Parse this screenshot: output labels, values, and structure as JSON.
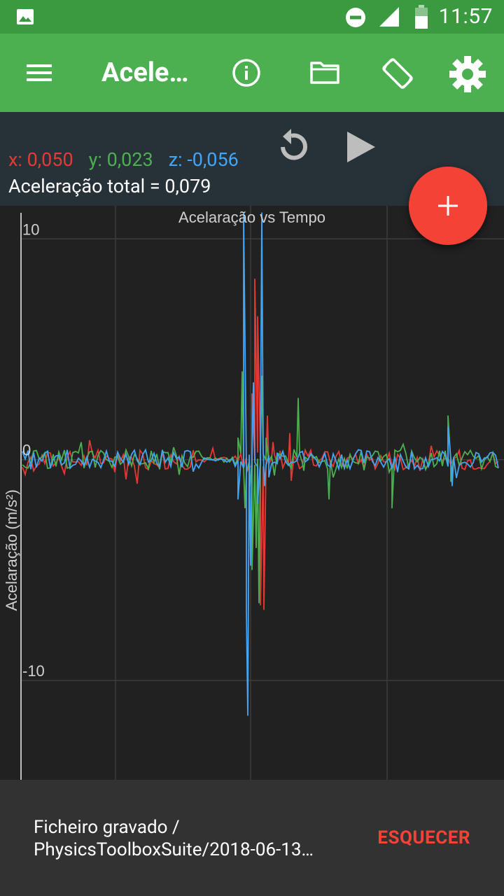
{
  "status_bar": {
    "time": "11:57"
  },
  "app_bar": {
    "title": "Acele…"
  },
  "readout": {
    "x_label": "x: 0,050",
    "y_label": "y: 0,023",
    "z_label": "z: -0,056",
    "total_label": "Aceleração total = 0,079",
    "colors": {
      "x": "#e53935",
      "y": "#4caf50",
      "z": "#42a5f5"
    }
  },
  "chart_data": {
    "type": "line",
    "title": "Acelaração vs Tempo",
    "ylabel": "Acelaração (m/s²)",
    "xlabel": "",
    "ylim": [
      -14.5,
      11.5
    ],
    "y_ticks": [
      10,
      0,
      -10
    ],
    "y_tick_labels": [
      "10",
      "0",
      "-10"
    ],
    "grid": true,
    "series": [
      {
        "color": "#e53935"
      },
      {
        "color": "#4caf50"
      },
      {
        "color": "#42a5f5"
      }
    ]
  },
  "snackbar": {
    "line1": "Ficheiro gravado /",
    "line2": "PhysicsToolboxSuite/2018-06-13…",
    "action": "ESQUECER"
  }
}
